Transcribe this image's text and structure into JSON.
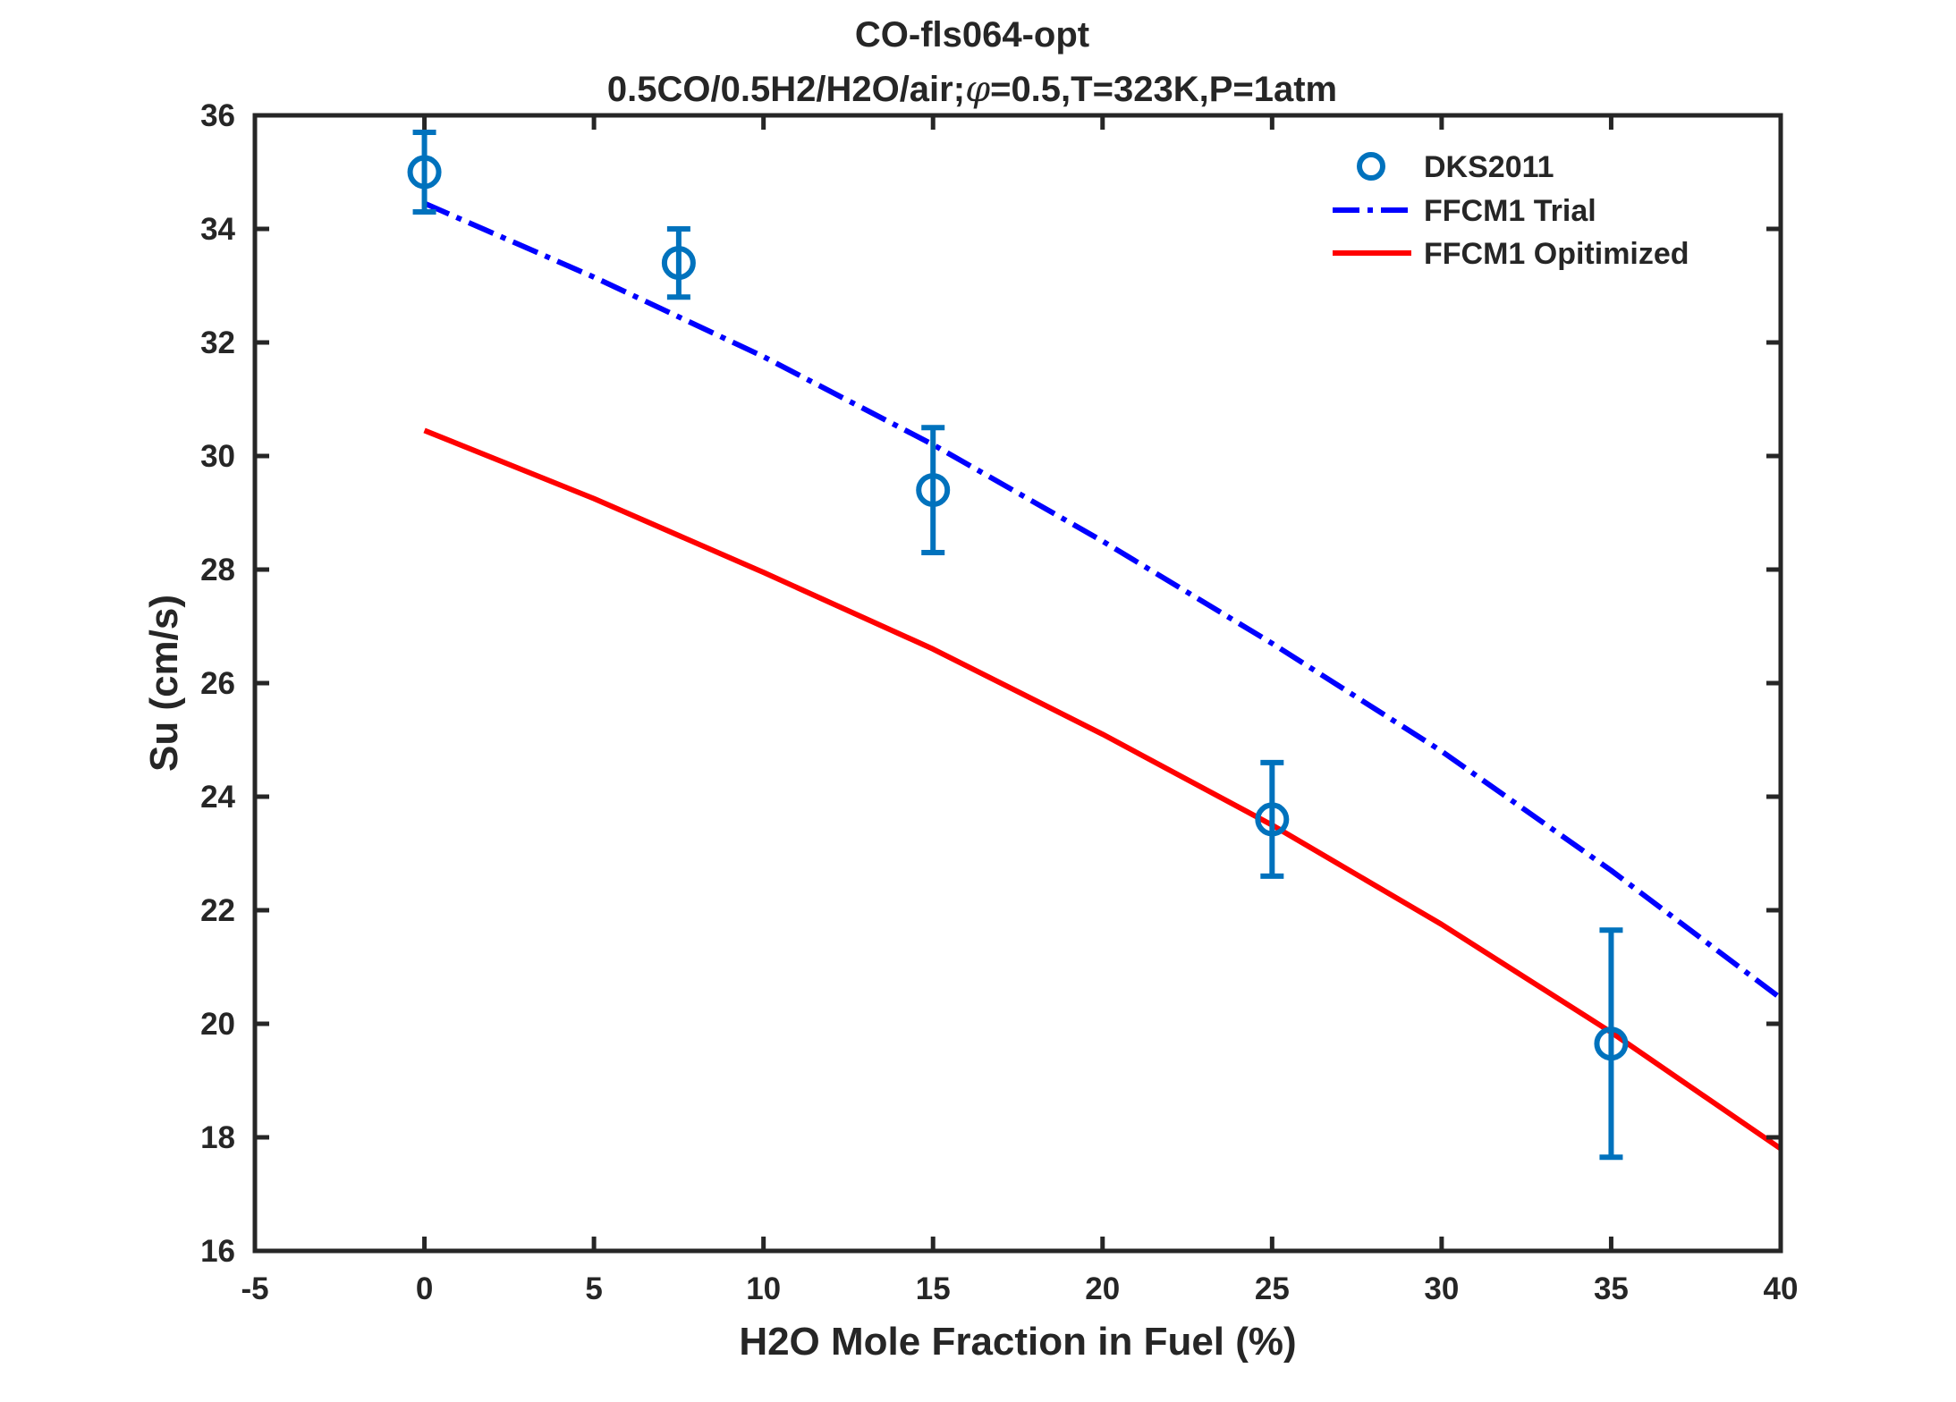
{
  "chart_data": {
    "type": "line",
    "title": "CO-fls064-opt",
    "subtitle_prefix": "0.5CO/0.5H2/H2O/air;",
    "subtitle_phi": "φ",
    "subtitle_suffix": "=0.5,T=323K,P=1atm",
    "xlabel": "H2O Mole Fraction in Fuel (%)",
    "ylabel": "Su (cm/s)",
    "xlim": [
      -5,
      40
    ],
    "ylim": [
      16,
      36
    ],
    "xticks": [
      "-5",
      "0",
      "5",
      "10",
      "15",
      "20",
      "25",
      "30",
      "35",
      "40"
    ],
    "yticks": [
      "16",
      "18",
      "20",
      "22",
      "24",
      "26",
      "28",
      "30",
      "32",
      "34",
      "36"
    ],
    "grid": false,
    "legend_position": "top-right",
    "series": [
      {
        "name": "DKS2011",
        "kind": "errorbar-markers",
        "color": "#0072BD",
        "x": [
          0,
          7.5,
          15,
          25,
          35
        ],
        "y": [
          35.0,
          33.4,
          29.4,
          23.6,
          19.65
        ],
        "err": [
          0.7,
          0.6,
          1.1,
          1.0,
          2.0
        ]
      },
      {
        "name": "FFCM1 Trial",
        "kind": "dashdot-line",
        "color": "#0000FF",
        "x": [
          0,
          5,
          10,
          15,
          20,
          25,
          30,
          35,
          40
        ],
        "y": [
          34.45,
          33.15,
          31.75,
          30.2,
          28.5,
          26.7,
          24.8,
          22.7,
          20.45
        ]
      },
      {
        "name": "FFCM1 Opitimized",
        "kind": "solid-line",
        "color": "#FF0000",
        "x": [
          0,
          5,
          10,
          15,
          20,
          25,
          30,
          35,
          40
        ],
        "y": [
          30.45,
          29.25,
          27.95,
          26.6,
          25.1,
          23.5,
          21.75,
          19.85,
          17.8
        ]
      }
    ]
  }
}
